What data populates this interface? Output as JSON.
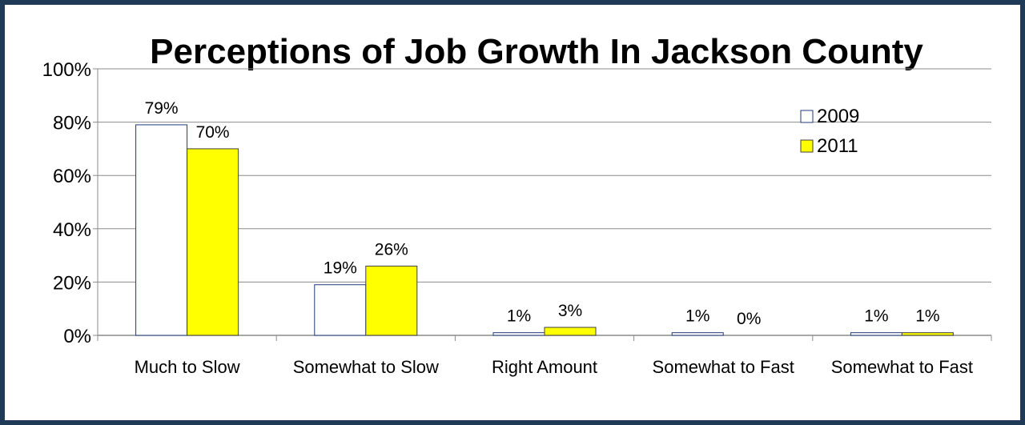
{
  "chart_data": {
    "type": "bar",
    "title": "Perceptions of Job Growth In Jackson County",
    "categories": [
      "Much to Slow",
      "Somewhat to Slow",
      "Right Amount",
      "Somewhat to Fast",
      "Somewhat to Fast"
    ],
    "series": [
      {
        "name": "2009",
        "values": [
          79,
          19,
          1,
          1,
          1
        ],
        "labels": [
          "79%",
          "19%",
          "1%",
          "1%",
          "1%"
        ],
        "color": "#ffffff"
      },
      {
        "name": "2011",
        "values": [
          70,
          26,
          3,
          0,
          1
        ],
        "labels": [
          "70%",
          "26%",
          "3%",
          "0%",
          "1%"
        ],
        "color": "#ffff00"
      }
    ],
    "yticks": [
      "0%",
      "20%",
      "40%",
      "60%",
      "80%",
      "100%"
    ],
    "ylim": [
      0,
      100
    ],
    "grid": true,
    "legend": "top-right",
    "bar_border_colors": [
      "#1f3a7a",
      "#404040"
    ]
  }
}
